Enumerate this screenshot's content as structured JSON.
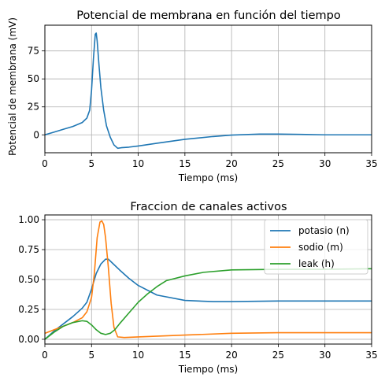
{
  "chart_data": [
    {
      "type": "line",
      "title": "Potencial de membrana en función del tiempo",
      "xlabel": "Tiempo (ms)",
      "ylabel": "Potencial de membrana (mV)",
      "xlim": [
        0,
        35
      ],
      "ylim": [
        -16,
        98
      ],
      "xticks": [
        0,
        5,
        10,
        15,
        20,
        25,
        30,
        35
      ],
      "xtick_labels": [
        "0",
        "5",
        "10",
        "15",
        "20",
        "25",
        "30",
        "35"
      ],
      "yticks": [
        0,
        25,
        50,
        75
      ],
      "ytick_labels": [
        "0",
        "25",
        "50",
        "75"
      ],
      "grid": true,
      "legend": null,
      "series": [
        {
          "color": "#1f77b4",
          "x": [
            0,
            1,
            2,
            3,
            4,
            4.5,
            4.8,
            5.0,
            5.2,
            5.4,
            5.5,
            5.6,
            5.8,
            6.0,
            6.3,
            6.6,
            7.0,
            7.4,
            7.8,
            8.2,
            9,
            10,
            12,
            15,
            18,
            20,
            23,
            25,
            28,
            30,
            35
          ],
          "y": [
            0,
            2.5,
            5,
            7.5,
            11,
            15,
            22,
            40,
            68,
            90,
            91,
            84,
            62,
            42,
            22,
            8,
            -2,
            -9,
            -12,
            -11.5,
            -11,
            -10,
            -7.5,
            -4,
            -1.5,
            -0.2,
            0.7,
            0.7,
            0.3,
            0,
            0
          ]
        }
      ]
    },
    {
      "type": "line",
      "title": "Fraccion de canales activos",
      "xlabel": "Tiempo (ms)",
      "ylabel": "",
      "xlim": [
        0,
        35
      ],
      "ylim": [
        -0.04,
        1.04
      ],
      "xticks": [
        0,
        5,
        10,
        15,
        20,
        25,
        30,
        35
      ],
      "xtick_labels": [
        "0",
        "5",
        "10",
        "15",
        "20",
        "25",
        "30",
        "35"
      ],
      "yticks": [
        0,
        0.25,
        0.5,
        0.75,
        1.0
      ],
      "ytick_labels": [
        "0.00",
        "0.25",
        "0.50",
        "0.75",
        "1.00"
      ],
      "grid": true,
      "legend": "top-right",
      "series": [
        {
          "name": "potasio (n)",
          "color": "#1f77b4",
          "x": [
            0,
            1,
            2,
            3,
            4,
            4.5,
            5,
            5.5,
            6,
            6.5,
            6.8,
            7.2,
            8,
            9,
            10,
            12,
            15,
            18,
            20,
            25,
            30,
            35
          ],
          "y": [
            0.0,
            0.07,
            0.13,
            0.19,
            0.26,
            0.31,
            0.42,
            0.55,
            0.63,
            0.67,
            0.67,
            0.64,
            0.58,
            0.51,
            0.45,
            0.37,
            0.325,
            0.315,
            0.315,
            0.32,
            0.32,
            0.32
          ]
        },
        {
          "name": "sodio (m)",
          "color": "#ff7f0e",
          "x": [
            0,
            1,
            2,
            3,
            4,
            4.5,
            5,
            5.3,
            5.6,
            5.9,
            6.1,
            6.3,
            6.5,
            6.8,
            7.1,
            7.4,
            7.8,
            8.5,
            10,
            15,
            20,
            25,
            30,
            35
          ],
          "y": [
            0.05,
            0.08,
            0.11,
            0.14,
            0.18,
            0.23,
            0.35,
            0.55,
            0.85,
            0.98,
            0.99,
            0.96,
            0.85,
            0.6,
            0.3,
            0.1,
            0.02,
            0.015,
            0.02,
            0.035,
            0.05,
            0.055,
            0.055,
            0.055
          ]
        },
        {
          "name": "leak (h)",
          "color": "#2ca02c",
          "x": [
            0,
            1,
            2,
            3,
            4,
            4.5,
            5,
            5.5,
            6,
            6.5,
            7,
            7.5,
            8,
            9,
            10,
            11,
            12,
            13,
            15,
            17,
            20,
            25,
            30,
            35
          ],
          "y": [
            0.0,
            0.06,
            0.11,
            0.14,
            0.155,
            0.15,
            0.12,
            0.08,
            0.05,
            0.04,
            0.05,
            0.08,
            0.13,
            0.22,
            0.31,
            0.38,
            0.44,
            0.49,
            0.53,
            0.56,
            0.58,
            0.585,
            0.585,
            0.59
          ]
        }
      ]
    }
  ]
}
